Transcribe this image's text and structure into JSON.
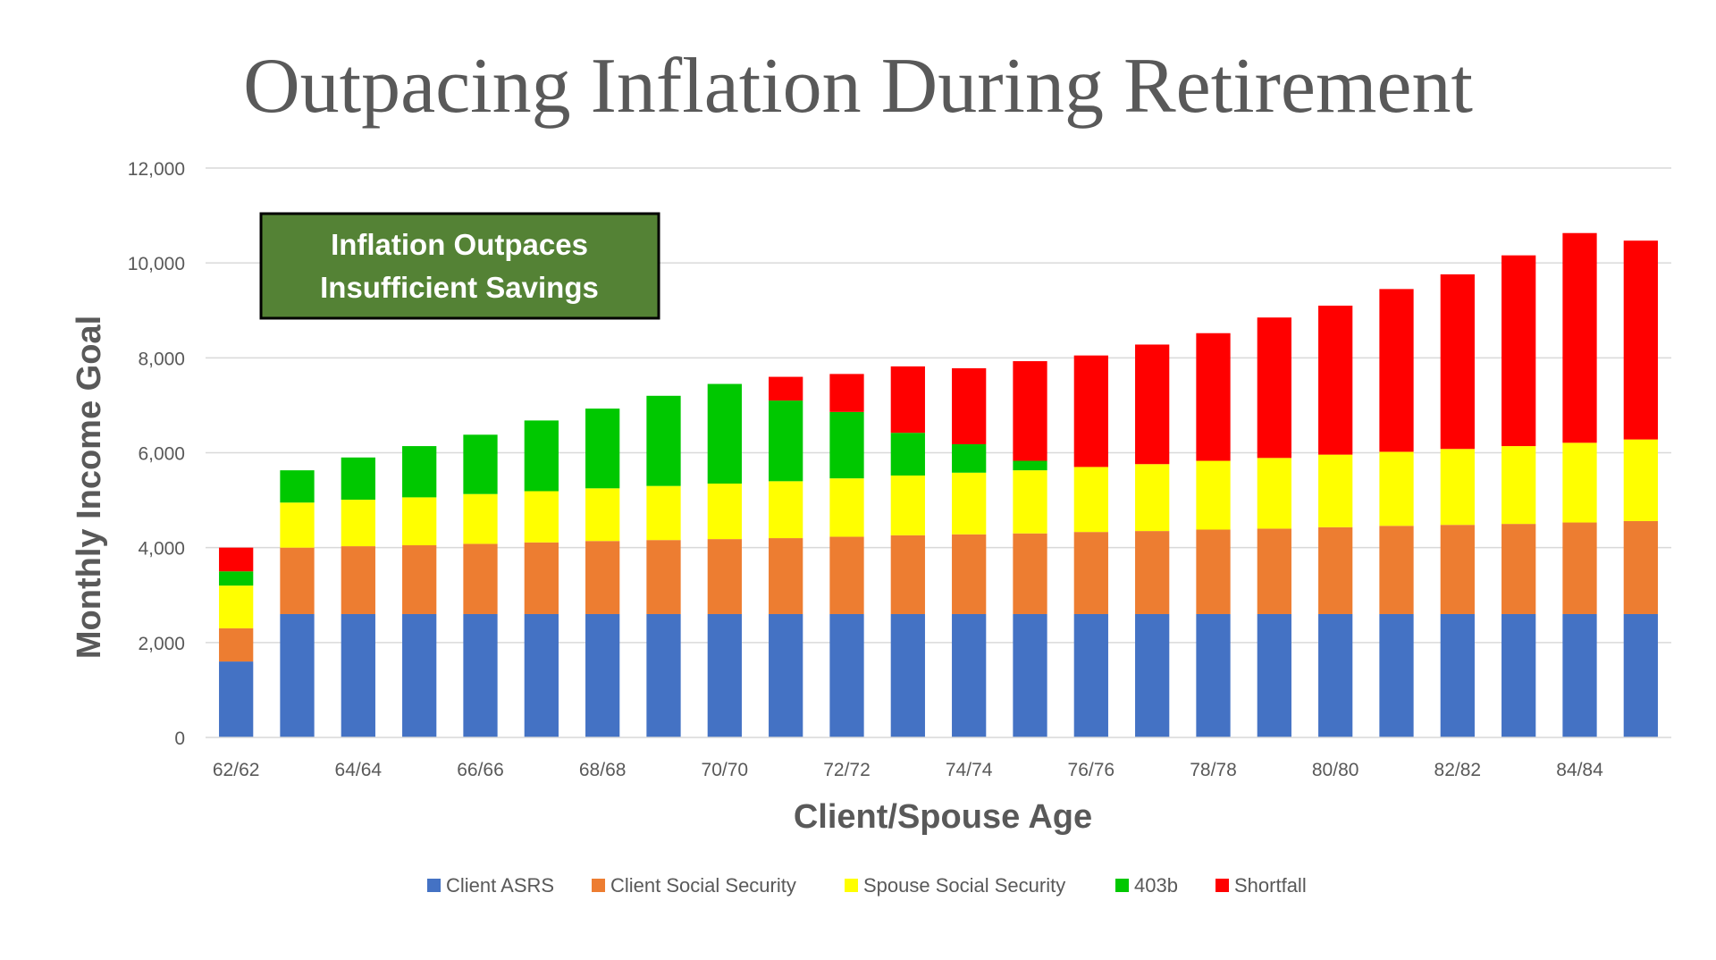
{
  "chart_data": {
    "type": "bar",
    "stacked": true,
    "title": "Outpacing Inflation During Retirement",
    "xlabel": "Client/Spouse Age",
    "ylabel": "Monthly Income Goal",
    "ylim": [
      0,
      12000
    ],
    "yticks": [
      "0",
      "2,000",
      "4,000",
      "6,000",
      "8,000",
      "10,000",
      "12,000"
    ],
    "ytick_values": [
      0,
      2000,
      4000,
      6000,
      8000,
      10000,
      12000
    ],
    "categories": [
      "62/62",
      "63/63",
      "64/64",
      "65/65",
      "66/66",
      "67/67",
      "68/68",
      "69/69",
      "70/70",
      "71/71",
      "72/72",
      "73/73",
      "74/74",
      "75/75",
      "76/76",
      "77/77",
      "78/78",
      "79/79",
      "80/80",
      "81/81",
      "82/82",
      "83/83",
      "84/84",
      "85/85"
    ],
    "xtick_labels_shown": [
      "62/62",
      "64/64",
      "66/66",
      "68/68",
      "70/70",
      "72/72",
      "74/74",
      "76/76",
      "78/78",
      "80/80",
      "82/82",
      "84/84"
    ],
    "series": [
      {
        "name": "Client ASRS",
        "color": "#4472C4",
        "values": [
          1600,
          2600,
          2600,
          2600,
          2600,
          2600,
          2600,
          2600,
          2600,
          2600,
          2600,
          2600,
          2600,
          2600,
          2600,
          2600,
          2600,
          2600,
          2600,
          2600,
          2600,
          2600,
          2600,
          2600
        ]
      },
      {
        "name": "Client Social Security",
        "color": "#ED7D31",
        "values": [
          700,
          1400,
          1430,
          1450,
          1480,
          1510,
          1540,
          1560,
          1580,
          1600,
          1630,
          1660,
          1680,
          1700,
          1730,
          1750,
          1780,
          1800,
          1830,
          1860,
          1880,
          1900,
          1930,
          1960
        ]
      },
      {
        "name": "Spouse Social Security",
        "color": "#FFFF00",
        "values": [
          900,
          950,
          980,
          1010,
          1050,
          1080,
          1110,
          1140,
          1170,
          1200,
          1230,
          1260,
          1300,
          1330,
          1370,
          1410,
          1450,
          1490,
          1530,
          1560,
          1600,
          1640,
          1680,
          1720
        ]
      },
      {
        "name": "403b",
        "color": "#00C800",
        "values": [
          300,
          680,
          890,
          1080,
          1250,
          1490,
          1680,
          1900,
          2100,
          1700,
          1400,
          900,
          600,
          200,
          0,
          0,
          0,
          0,
          0,
          0,
          0,
          0,
          0,
          0
        ]
      },
      {
        "name": "Shortfall",
        "color": "#FF0000",
        "values": [
          500,
          0,
          0,
          0,
          0,
          0,
          0,
          0,
          0,
          500,
          800,
          1400,
          1600,
          2100,
          2350,
          2520,
          2690,
          2960,
          3140,
          3430,
          3680,
          4020,
          4420,
          4190
        ]
      }
    ],
    "annotation": {
      "line1": "Inflation Outpaces",
      "line2": "Insufficient  Savings",
      "fill": "#548235"
    },
    "legend_position": "bottom",
    "grid": true
  }
}
